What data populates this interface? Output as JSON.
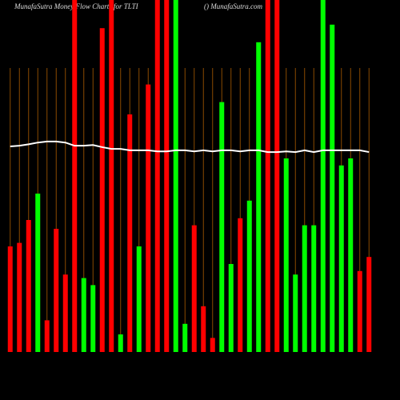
{
  "chart_data": {
    "type": "bar",
    "title": "MunafaSutra  Money  Flow  Charts for TLTI",
    "subtitle": "() MunafaSutra.com",
    "categories": [
      null,
      null,
      null,
      null,
      null,
      null,
      null,
      null,
      null,
      null,
      null,
      null,
      null,
      null,
      null,
      null,
      null,
      null,
      null,
      null,
      null,
      null,
      null,
      null,
      null,
      null,
      null,
      null,
      null,
      null,
      null,
      null,
      null,
      null,
      null,
      null,
      null,
      null,
      null,
      null
    ],
    "values": [
      30,
      31,
      37.5,
      45,
      9,
      35,
      22,
      100,
      21,
      19,
      92,
      100,
      5,
      67.5,
      30,
      76,
      100,
      100,
      100,
      8,
      36,
      13,
      4,
      71,
      25,
      38,
      43,
      88,
      100,
      100,
      55,
      22,
      36,
      36,
      100,
      93,
      53,
      55,
      23,
      27
    ],
    "colors": [
      "#ff0000",
      "#ff0000",
      "#ff0000",
      "#00ff00",
      "#ff0000",
      "#ff0000",
      "#ff0000",
      "#ff0000",
      "#00ff00",
      "#00ff00",
      "#ff0000",
      "#ff0000",
      "#00ff00",
      "#ff0000",
      "#00ff00",
      "#ff0000",
      "#ff0000",
      "#ff0000",
      "#00ff00",
      "#00ff00",
      "#ff0000",
      "#ff0000",
      "#ff0000",
      "#00ff00",
      "#00ff00",
      "#ff0000",
      "#00ff00",
      "#00ff00",
      "#ff0000",
      "#ff0000",
      "#00ff00",
      "#00ff00",
      "#00ff00",
      "#00ff00",
      "#00ff00",
      "#00ff00",
      "#00ff00",
      "#00ff00",
      "#ff0000",
      "#ff0000"
    ],
    "line": {
      "color": "#ffffff",
      "values": [
        58.4,
        58.6,
        59,
        59.5,
        59.8,
        59.8,
        59.5,
        58.6,
        58.6,
        58.8,
        58.2,
        57.7,
        57.7,
        57.3,
        57.3,
        57.3,
        57,
        57,
        57.3,
        57.3,
        57,
        57.3,
        57,
        57.3,
        57.3,
        57,
        57.3,
        57.3,
        56.8,
        56.8,
        57,
        56.8,
        57.3,
        56.8,
        57.3,
        57.3,
        57.3,
        57.3,
        57.3,
        56.8
      ]
    },
    "ylim": [
      0,
      100
    ]
  }
}
